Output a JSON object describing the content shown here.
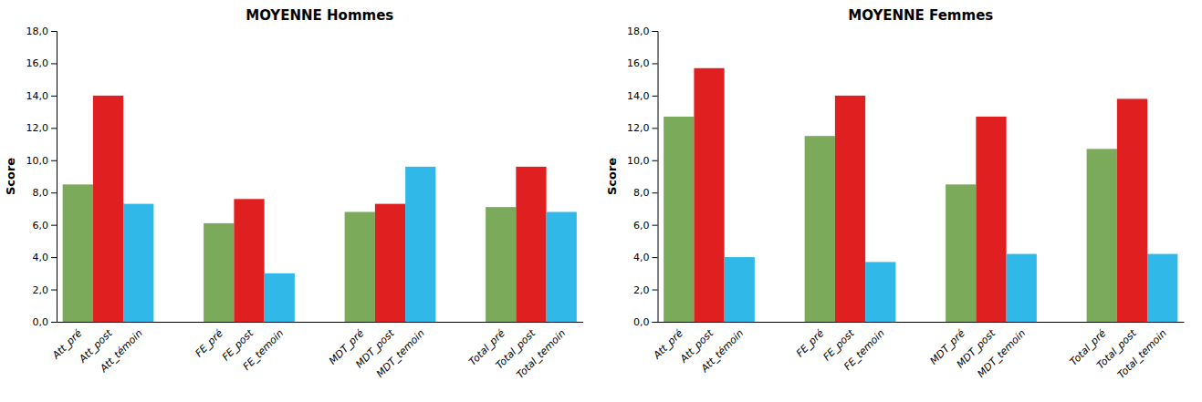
{
  "chart_data": [
    {
      "type": "bar",
      "title": "MOYENNE Hommes",
      "ylabel": "Score",
      "categories": [
        "Att_pré",
        "Att_post",
        "Att_témoin",
        "FE_pré",
        "FE_post",
        "FE_temoin",
        "MDT_pré",
        "MDT_post",
        "MDT_temoin",
        "Total_pré",
        "Total_post",
        "Total_temoin"
      ],
      "values": [
        8.5,
        14.0,
        7.3,
        6.1,
        7.6,
        3.0,
        6.8,
        7.3,
        9.6,
        7.1,
        9.6,
        6.8
      ],
      "colors": [
        "#7aaa5a",
        "#e02020",
        "#30b8e8",
        "#7aaa5a",
        "#e02020",
        "#30b8e8",
        "#7aaa5a",
        "#e02020",
        "#30b8e8",
        "#7aaa5a",
        "#e02020",
        "#30b8e8"
      ],
      "ylim": [
        0,
        18.0
      ],
      "yticks": [
        {
          "value": 0.0,
          "label": "0,0"
        },
        {
          "value": 2.0,
          "label": "2,0"
        },
        {
          "value": 4.0,
          "label": "4,0"
        },
        {
          "value": 6.0,
          "label": "6,0"
        },
        {
          "value": 8.0,
          "label": "8,0"
        },
        {
          "value": 10.0,
          "label": "10,0"
        },
        {
          "value": 12.0,
          "label": "12,0"
        },
        {
          "value": 14.0,
          "label": "14,0"
        },
        {
          "value": 16.0,
          "label": "16,0"
        },
        {
          "value": 18.0,
          "label": "18,0"
        }
      ],
      "grid": false
    },
    {
      "type": "bar",
      "title": "MOYENNE Femmes",
      "ylabel": "Score",
      "categories": [
        "Att_pré",
        "Att_post",
        "Att_témoin",
        "FE_pré",
        "FE_post",
        "FE_temoin",
        "MDT_pré",
        "MDT_post",
        "MDT_temoin",
        "Total_pré",
        "Total_post",
        "Total_temoin"
      ],
      "values": [
        12.7,
        15.7,
        4.0,
        11.5,
        14.0,
        3.7,
        8.5,
        12.7,
        4.2,
        10.7,
        13.8,
        4.2
      ],
      "colors": [
        "#7aaa5a",
        "#e02020",
        "#30b8e8",
        "#7aaa5a",
        "#e02020",
        "#30b8e8",
        "#7aaa5a",
        "#e02020",
        "#30b8e8",
        "#7aaa5a",
        "#e02020",
        "#30b8e8"
      ],
      "ylim": [
        0,
        18.0
      ],
      "yticks": [
        {
          "value": 0.0,
          "label": "0,0"
        },
        {
          "value": 2.0,
          "label": "2,0"
        },
        {
          "value": 4.0,
          "label": "4,0"
        },
        {
          "value": 6.0,
          "label": "6,0"
        },
        {
          "value": 8.0,
          "label": "8,0"
        },
        {
          "value": 10.0,
          "label": "10,0"
        },
        {
          "value": 12.0,
          "label": "12,0"
        },
        {
          "value": 14.0,
          "label": "14,0"
        },
        {
          "value": 16.0,
          "label": "16,0"
        },
        {
          "value": 18.0,
          "label": "18,0"
        }
      ],
      "grid": false
    }
  ]
}
